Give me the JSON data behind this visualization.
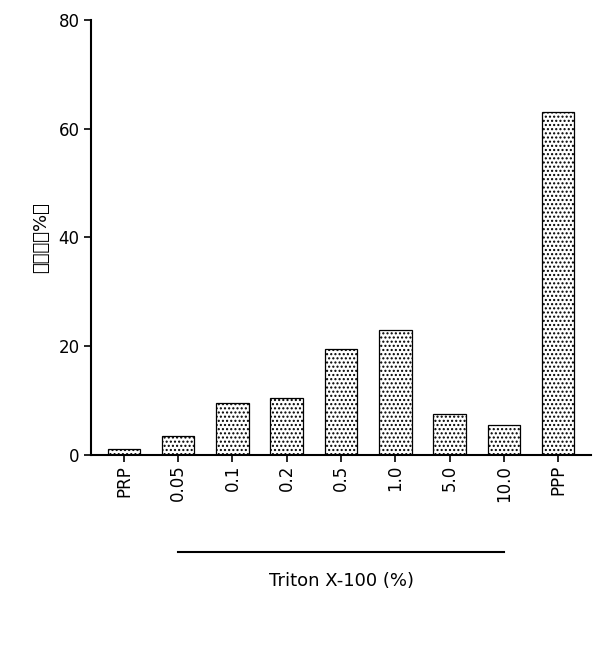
{
  "categories": [
    "PRP",
    "0.05",
    "0.1",
    "0.2",
    "0.5",
    "1.0",
    "5.0",
    "10.0",
    "PPP"
  ],
  "values": [
    1.0,
    3.5,
    9.5,
    10.5,
    19.5,
    23.0,
    7.5,
    5.5,
    63.0
  ],
  "bar_facecolor": "white",
  "hatch": "....",
  "ylabel": "透光率（%）",
  "xlabel_main": "Triton X-100 (%)",
  "ylim": [
    0,
    80
  ],
  "yticks": [
    0,
    20,
    40,
    60,
    80
  ],
  "bar_width": 0.6,
  "background_color": "#ffffff",
  "ylabel_fontsize": 13,
  "xlabel_fontsize": 13,
  "tick_fontsize": 12
}
